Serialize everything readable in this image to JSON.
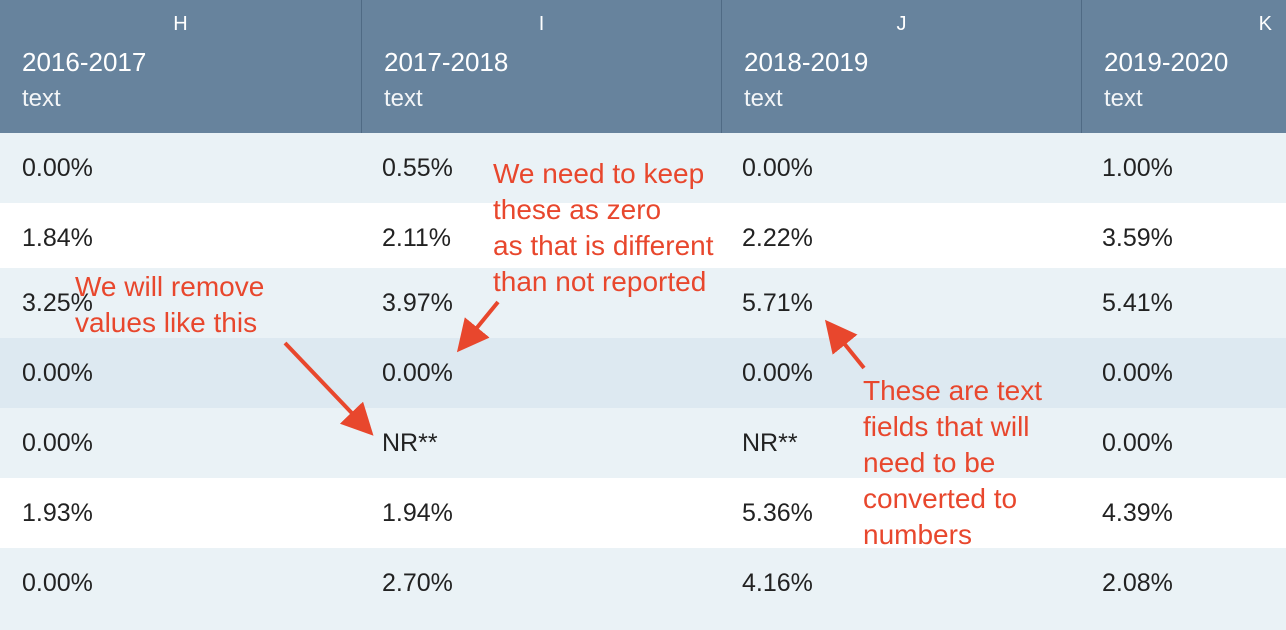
{
  "columns": [
    {
      "letter": "H",
      "year": "2016-2017",
      "type": "text"
    },
    {
      "letter": "I",
      "year": "2017-2018",
      "type": "text"
    },
    {
      "letter": "J",
      "year": "2018-2019",
      "type": "text"
    },
    {
      "letter": "K",
      "year": "2019-2020",
      "type": "text"
    }
  ],
  "rows": [
    [
      "0.00%",
      "0.55%",
      "0.00%",
      "1.00%"
    ],
    [
      "1.84%",
      "2.11%",
      "2.22%",
      "3.59%"
    ],
    [
      "3.25%",
      "3.97%",
      "5.71%",
      "5.41%"
    ],
    [
      "0.00%",
      "0.00%",
      "0.00%",
      "0.00%"
    ],
    [
      "0.00%",
      "NR**",
      "NR**",
      "0.00%"
    ],
    [
      "1.93%",
      "1.94%",
      "5.36%",
      "4.39%"
    ],
    [
      "0.00%",
      "2.70%",
      "4.16%",
      "2.08%"
    ]
  ],
  "annotations": {
    "remove": [
      "We will remove",
      "values like this"
    ],
    "keep_zero": [
      "We need to keep",
      "these as zero",
      "as that is different",
      "than not reported"
    ],
    "convert": [
      "These are text",
      "fields that will",
      "need to be",
      "converted to",
      "numbers"
    ]
  },
  "colors": {
    "header_bg": "#67839d",
    "row_alt": "#eaf2f6",
    "row_selected": "#dde9f1",
    "annotation": "#e8472d"
  }
}
